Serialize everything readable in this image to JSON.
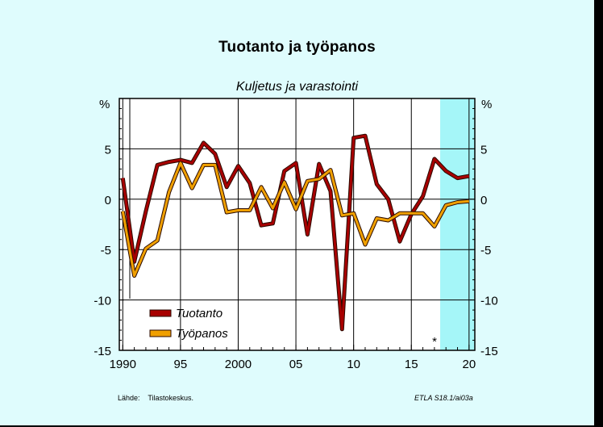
{
  "chart_data": {
    "type": "line",
    "title": "Tuotanto ja työpanos",
    "subtitle": "Kuljetus ja varastointi",
    "ylabel_left": "%",
    "ylabel_right": "%",
    "ylim": [
      -15,
      10
    ],
    "yticks": [
      -15,
      -10,
      -5,
      0,
      5
    ],
    "xlim": [
      1990,
      2020
    ],
    "xticks": [
      {
        "value": 1990,
        "label": "1990"
      },
      {
        "value": 1995,
        "label": "95"
      },
      {
        "value": 2000,
        "label": "2000"
      },
      {
        "value": 2005,
        "label": "05"
      },
      {
        "value": 2010,
        "label": "10"
      },
      {
        "value": 2015,
        "label": "15"
      },
      {
        "value": 2020,
        "label": "20"
      }
    ],
    "forecast_region": {
      "from": 2017.5,
      "to": 2020.5,
      "color": "#a5f6f8"
    },
    "annotation": "*",
    "grid": true,
    "legend_placement": "bottom-left",
    "x": [
      1990,
      1991,
      1992,
      1993,
      1994,
      1995,
      1996,
      1997,
      1998,
      1999,
      2000,
      2001,
      2002,
      2003,
      2004,
      2005,
      2006,
      2007,
      2008,
      2009,
      2010,
      2011,
      2012,
      2013,
      2014,
      2015,
      2016,
      2017,
      2018,
      2019,
      2020
    ],
    "series": [
      {
        "name": "Tuotanto",
        "color": "#a80000",
        "values": [
          2.1,
          -6.2,
          -1.2,
          3.4,
          3.7,
          3.9,
          3.6,
          5.6,
          4.5,
          1.2,
          3.3,
          1.6,
          -2.6,
          -2.4,
          2.8,
          3.6,
          -3.5,
          3.5,
          0.8,
          -12.9,
          6.1,
          6.3,
          1.5,
          0.0,
          -4.2,
          -1.5,
          0.3,
          4.0,
          2.8,
          2.1,
          2.3
        ]
      },
      {
        "name": "Työpanos",
        "color": "#f0a000",
        "values": [
          -1.2,
          -7.6,
          -4.9,
          -4.1,
          0.7,
          3.6,
          1.1,
          3.4,
          3.4,
          -1.3,
          -1.1,
          -1.1,
          1.2,
          -0.9,
          1.7,
          -1.0,
          1.8,
          2.0,
          2.9,
          -1.6,
          -1.4,
          -4.5,
          -1.9,
          -2.1,
          -1.4,
          -1.4,
          -1.4,
          -2.7,
          -0.6,
          -0.3,
          -0.2
        ]
      }
    ]
  },
  "footer": {
    "source": "Lähde:    Tilastokeskus.",
    "code": "ETLA S18.1/ai03a"
  }
}
